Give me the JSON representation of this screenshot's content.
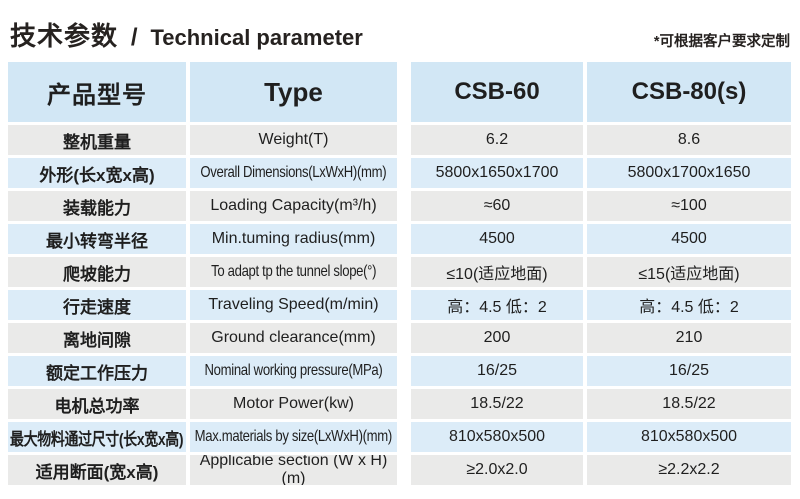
{
  "page": {
    "title_cn": "技术参数",
    "title_divider": "/",
    "title_en": "Technical parameter",
    "note": "*可根据客户要求定制"
  },
  "colors": {
    "header_blue": "#d2e7f5",
    "row_blue": "#dcecf8",
    "row_gray": "#eaeae9",
    "text": "#1f1f1f"
  },
  "table": {
    "header": {
      "product_model_cn": "产品型号",
      "type_label": "Type",
      "model_1": "CSB-60",
      "model_2": "CSB-80(s)"
    },
    "rows": [
      {
        "cn": "整机重量",
        "en": "Weight(T)",
        "v1": "6.2",
        "v2": "8.6"
      },
      {
        "cn": "外形(长x宽x高)",
        "en": "Overall Dimensions(LxWxH)(mm)",
        "v1": "5800x1650x1700",
        "v2": "5800x1700x1650",
        "fit_en": true
      },
      {
        "cn": "装载能力",
        "en": "Loading Capacity(m³/h)",
        "v1": "≈60",
        "v2": "≈100"
      },
      {
        "cn": "最小转弯半径",
        "en": "Min.tuming radius(mm)",
        "v1": "4500",
        "v2": "4500"
      },
      {
        "cn": "爬坡能力",
        "en": "To adapt tp the tunnel slope(°)",
        "v1": "≤10(适应地面)",
        "v2": "≤15(适应地面)",
        "fit_en": true
      },
      {
        "cn": "行走速度",
        "en": "Traveling Speed(m/min)",
        "v1": "高：4.5 低：2",
        "v2": "高：4.5 低：2"
      },
      {
        "cn": "离地间隙",
        "en": "Ground clearance(mm)",
        "v1": "200",
        "v2": "210"
      },
      {
        "cn": "额定工作压力",
        "en": "Nominal working pressure(MPa)",
        "v1": "16/25",
        "v2": "16/25",
        "fit_en": true
      },
      {
        "cn": "电机总功率",
        "en": "Motor Power(kw)",
        "v1": "18.5/22",
        "v2": "18.5/22"
      },
      {
        "cn": "最大物料通过尺寸(长x宽x高)",
        "en": "Max.materials by size(LxWxH)(mm)",
        "v1": "810x580x500",
        "v2": "810x580x500",
        "fit_en": true,
        "fit_cn": true
      },
      {
        "cn": "适用断面(宽x高)",
        "en": "Applicabie section (W x H)(m)",
        "v1": "≥2.0x2.0",
        "v2": "≥2.2x2.2"
      }
    ]
  }
}
